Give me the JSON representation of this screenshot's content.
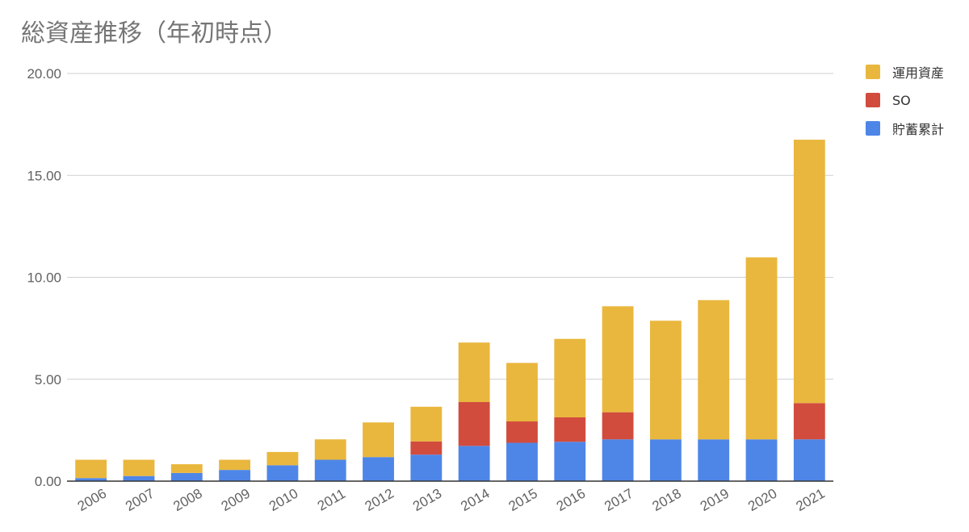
{
  "chart_data": {
    "type": "bar",
    "stacked": true,
    "title": "総資産推移（年初時点）",
    "xlabel": "",
    "ylabel": "",
    "ylim": [
      0,
      20
    ],
    "yticks": [
      "0.00",
      "5.00",
      "10.00",
      "15.00",
      "20.00"
    ],
    "grid": true,
    "legend_position": "right",
    "categories": [
      "2006",
      "2007",
      "2008",
      "2009",
      "2010",
      "2011",
      "2012",
      "2013",
      "2014",
      "2015",
      "2016",
      "2017",
      "2018",
      "2019",
      "2020",
      "2021"
    ],
    "series": [
      {
        "name": "貯蓄累計",
        "color": "#4e86e8",
        "values": [
          0.15,
          0.25,
          0.4,
          0.55,
          0.78,
          1.05,
          1.18,
          1.3,
          1.73,
          1.88,
          1.93,
          2.05,
          2.05,
          2.05,
          2.05,
          2.05
        ]
      },
      {
        "name": "SO",
        "color": "#d14c3d",
        "values": [
          0,
          0,
          0,
          0,
          0,
          0,
          0,
          0.65,
          2.15,
          1.05,
          1.2,
          1.33,
          0,
          0,
          0,
          1.78
        ]
      },
      {
        "name": "運用資産",
        "color": "#e9b73d",
        "values": [
          0.9,
          0.8,
          0.43,
          0.5,
          0.65,
          1.0,
          1.7,
          1.7,
          2.92,
          2.87,
          3.85,
          5.2,
          5.82,
          6.83,
          8.93,
          12.92
        ]
      }
    ],
    "legend_order": [
      "運用資産",
      "SO",
      "貯蓄累計"
    ]
  }
}
